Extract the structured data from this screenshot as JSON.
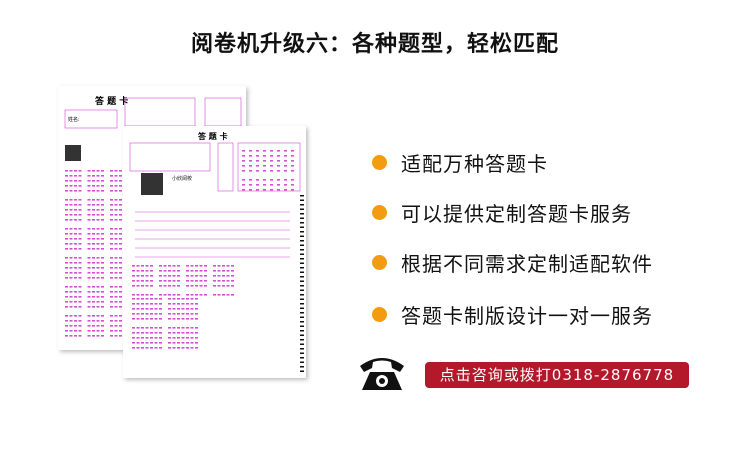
{
  "header": {
    "title": "阅卷机升级六：各种题型，轻松匹配"
  },
  "sheets": [
    {
      "title": "答 题 卡",
      "name_label": "姓名:"
    },
    {
      "title": "答 题 卡",
      "brand": "小欣阅校"
    }
  ],
  "features": [
    "适配万种答题卡",
    "可以提供定制答题卡服务",
    "根据不同需求定制适配软件",
    "答题卡制版设计一对一服务"
  ],
  "contact": {
    "button": "点击咨询或拨打0318-2876778"
  }
}
